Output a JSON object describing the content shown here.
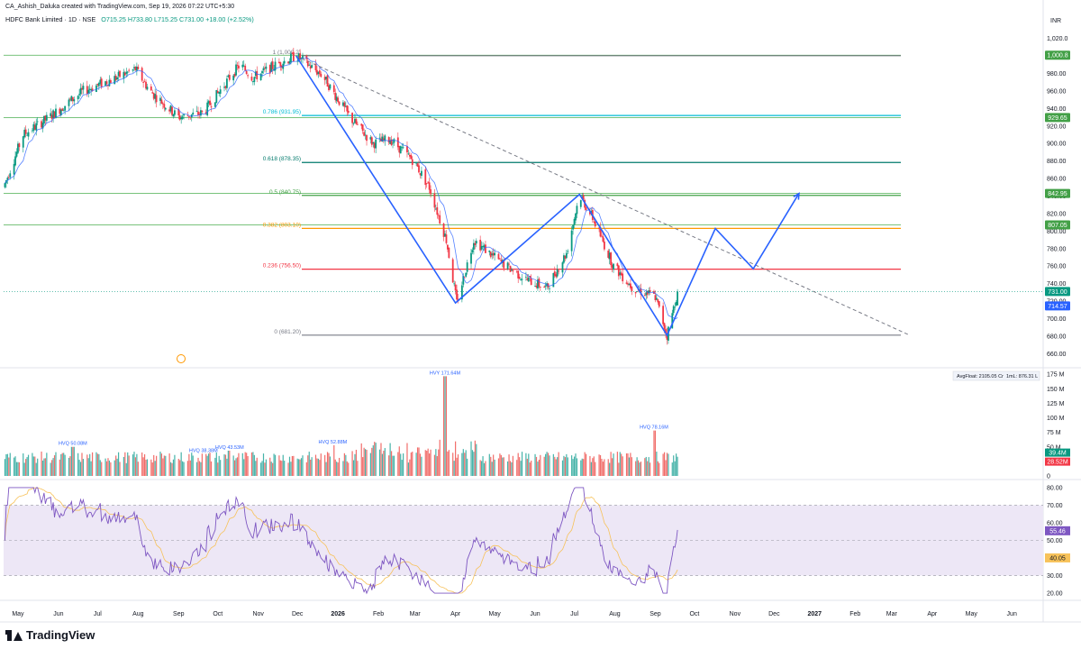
{
  "header": {
    "creator": "CA_Ashish_Daluka created with TradingView.com, Sep 19, 2026 07:22 UTC+5:30",
    "symbol": "HDFC Bank Limited · 1D · NSE",
    "open": "O715.25",
    "high": "H733.80",
    "low": "L715.25",
    "close": "C731.00",
    "change": "+18.00 (+2.52%)"
  },
  "brand": "TradingView",
  "colors": {
    "up": "#089981",
    "down": "#f23645",
    "pattern": "#2962ff",
    "rsi": "#7e57c2",
    "rsi_ma": "#f7c25a",
    "rsi_band": "#ede7f6"
  },
  "chart_data": {
    "type": "candlestick",
    "price_axis": {
      "unit": "INR",
      "ylim": [
        645,
        1035
      ],
      "ticks": [
        "1,020.0",
        "1,000.0",
        "980.00",
        "960.00",
        "940.00",
        "920.00",
        "900.00",
        "880.00",
        "860.00",
        "840.00",
        "820.00",
        "800.00",
        "780.00",
        "760.00",
        "740.00",
        "720.00",
        "700.00",
        "680.00",
        "660.00"
      ],
      "labels": [
        {
          "text": "1,000.8",
          "value": 1000.8,
          "color": "#43a047"
        },
        {
          "text": "929.65",
          "value": 929.65,
          "color": "#43a047"
        },
        {
          "text": "842.95",
          "value": 842.95,
          "color": "#43a047"
        },
        {
          "text": "807.05",
          "value": 807.05,
          "color": "#43a047"
        },
        {
          "text": "731.00",
          "value": 731.0,
          "color": "#089981"
        },
        {
          "text": "714.57",
          "value": 714.57,
          "color": "#2962ff"
        }
      ]
    },
    "x_axis": {
      "labels": [
        "May",
        "Jun",
        "Jul",
        "Aug",
        "Sep",
        "Oct",
        "Nov",
        "Dec",
        "2026",
        "Feb",
        "Mar",
        "Apr",
        "May",
        "Jun",
        "Jul",
        "Aug",
        "Sep",
        "Oct",
        "Nov",
        "Dec",
        "2027",
        "Feb",
        "Mar",
        "Apr",
        "May",
        "Jun"
      ]
    },
    "fibonacci": [
      {
        "label": "1 (1,000.2)",
        "value": 1000.2,
        "color": "#787b86"
      },
      {
        "label": "0.786 (931.95)",
        "value": 931.95,
        "color": "#00bcd4"
      },
      {
        "label": "0.618 (878.35)",
        "value": 878.35,
        "color": "#00796b"
      },
      {
        "label": "0.5 (840.75)",
        "value": 840.75,
        "color": "#43a047"
      },
      {
        "label": "0.382 (803.10)",
        "value": 803.1,
        "color": "#ff9800"
      },
      {
        "label": "0.236 (756.50)",
        "value": 756.5,
        "color": "#f23645"
      },
      {
        "label": "0 (681.20)",
        "value": 681.2,
        "color": "#787b86"
      }
    ],
    "horizontal_levels": [
      {
        "value": 1000.8,
        "color": "#4caf50"
      },
      {
        "value": 929.65,
        "color": "#4caf50"
      },
      {
        "value": 842.95,
        "color": "#4caf50"
      },
      {
        "value": 807.05,
        "color": "#4caf50"
      }
    ],
    "pattern_path": [
      {
        "date": "2025-11-30",
        "price": 1000
      },
      {
        "date": "2026-04-01",
        "price": 718
      },
      {
        "date": "2026-07-05",
        "price": 842
      },
      {
        "date": "2026-09-10",
        "price": 681
      },
      {
        "date": "2026-10-17",
        "price": 803
      },
      {
        "date": "2026-11-15",
        "price": 757
      },
      {
        "date": "2026-12-20",
        "price": 843
      }
    ],
    "trendline": {
      "from": {
        "date": "2025-11-30",
        "price": 1000
      },
      "to": {
        "date": "2027-03-15",
        "price": 681
      }
    },
    "anchors": {
      "start": "2025-04-20",
      "last": "2026-09-18",
      "last_close": 731.0,
      "last_open": 715.25,
      "last_high": 733.8,
      "last_low": 715.25
    },
    "volume": {
      "ylim": [
        0,
        180
      ],
      "ticks": [
        "175 M",
        "150 M",
        "125 M",
        "100 M",
        "75 M",
        "50 M",
        "25 M",
        "0"
      ],
      "current": [
        "39.4M",
        "28.52M"
      ],
      "info": [
        "AvgFloat: 2105.05 Cr",
        "1mL: 876.31 L"
      ],
      "annotations": [
        {
          "text": "HVQ 50.08M",
          "date": "2025-06-12",
          "value": 50.08
        },
        {
          "text": "HVQ 38.38M",
          "date": "2025-09-20",
          "value": 38.38
        },
        {
          "text": "HVQ 43.53M",
          "date": "2025-10-10",
          "value": 43.53
        },
        {
          "text": "HVQ 52.88M",
          "date": "2025-12-28",
          "value": 52.88
        },
        {
          "text": "HVY 171.64M",
          "date": "2026-03-24",
          "value": 171.64
        },
        {
          "text": "HVQ 78.16M",
          "date": "2026-08-31",
          "value": 78.16
        }
      ]
    },
    "rsi": {
      "ylim": [
        18,
        82
      ],
      "ticks": [
        "80.00",
        "70.00",
        "60.00",
        "50.00",
        "40.00",
        "30.00",
        "20.00"
      ],
      "bands": [
        30,
        50,
        70
      ],
      "current": [
        "55.46",
        "40.05"
      ]
    }
  }
}
